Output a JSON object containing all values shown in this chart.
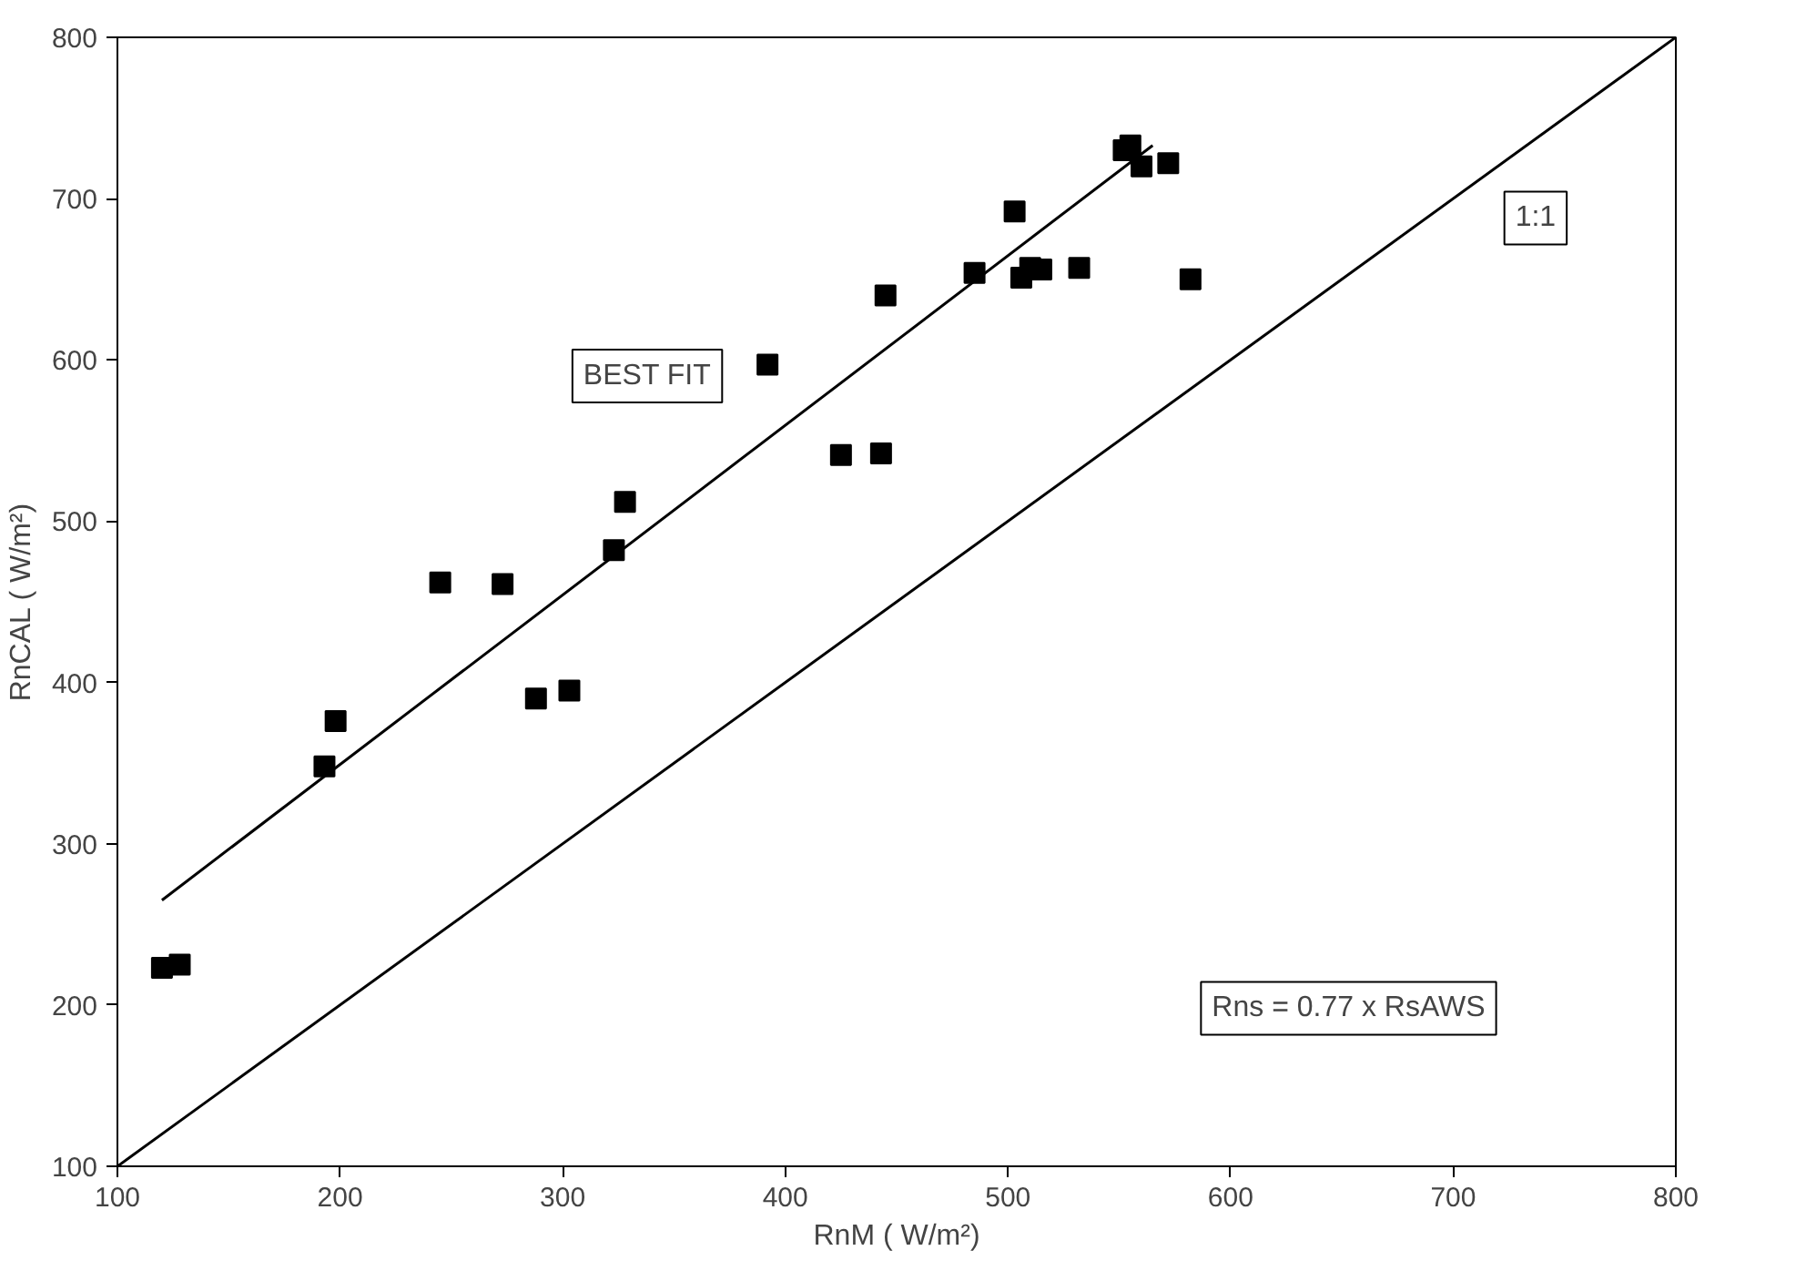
{
  "chart_data": {
    "type": "scatter",
    "xlabel": "RnM ( W/m²)",
    "ylabel": "RnCAL ( W/m²)",
    "grid": false,
    "xlim": [
      100,
      800
    ],
    "ylim": [
      100,
      800
    ],
    "xticks": [
      100,
      200,
      300,
      400,
      500,
      600,
      700,
      800
    ],
    "yticks": [
      100,
      200,
      300,
      400,
      500,
      600,
      700,
      800
    ],
    "series": [
      {
        "color": "#000000",
        "marker": "square",
        "x": [
          120,
          128,
          193,
          198,
          245,
          273,
          288,
          303,
          323,
          328,
          392,
          425,
          443,
          445,
          485,
          503,
          506,
          510,
          515,
          532,
          552,
          555,
          560,
          572,
          582
        ],
        "values": [
          223,
          225,
          348,
          376,
          462,
          461,
          390,
          395,
          482,
          512,
          597,
          541,
          542,
          640,
          654,
          692,
          651,
          657,
          656,
          657,
          730,
          733,
          720,
          722,
          650
        ]
      },
      {
        "type": "line",
        "color": "#000000",
        "x": [
          120,
          565
        ],
        "values": [
          265,
          733
        ]
      },
      {
        "type": "line",
        "color": "#000000",
        "x": [
          100,
          800
        ],
        "values": [
          100,
          800
        ]
      }
    ],
    "annotations": [
      "BEST FIT",
      "1:1",
      "Rns = 0.77 x RsAWS"
    ]
  }
}
